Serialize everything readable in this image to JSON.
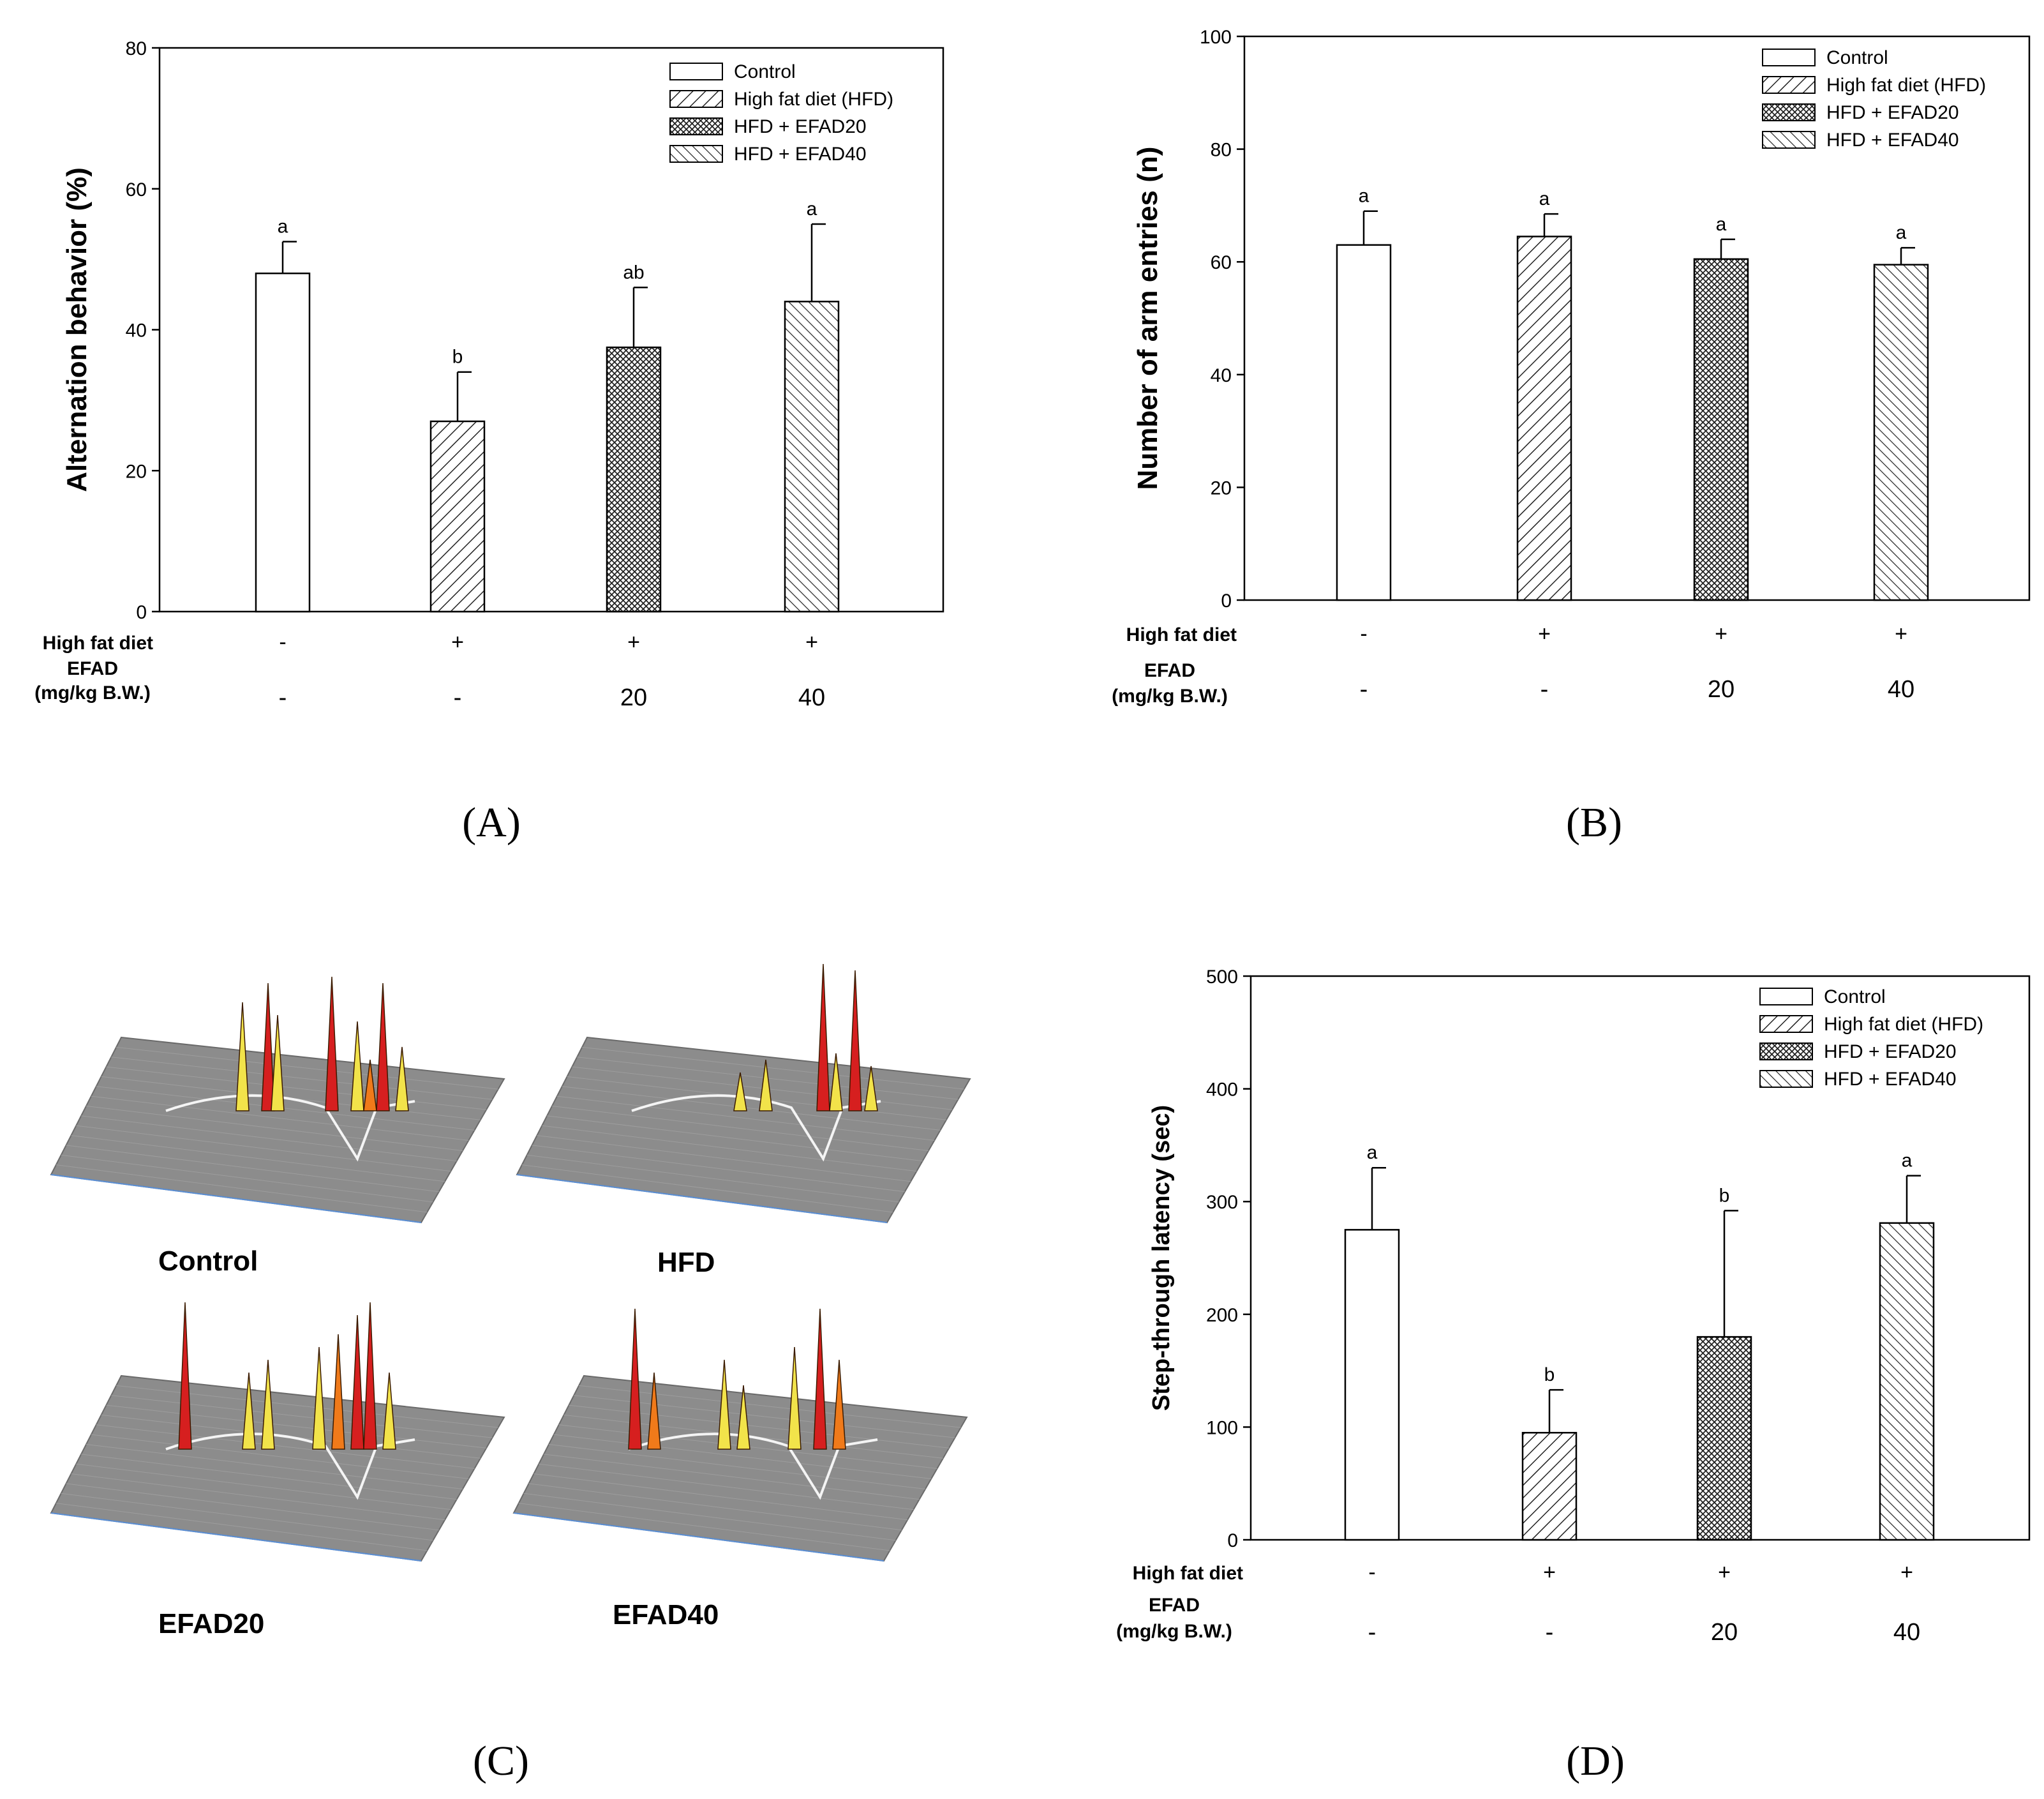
{
  "chart_data": [
    {
      "panel": "A",
      "panel_label": "(A)",
      "type": "bar",
      "ylabel": "Alternation behavior (%)",
      "ylim": [
        0,
        80
      ],
      "yticks": [
        "0",
        "20",
        "40",
        "60",
        "80"
      ],
      "values": [
        48,
        27,
        37.5,
        44
      ],
      "errors": [
        4.5,
        7,
        8.5,
        11
      ],
      "significance": [
        "a",
        "b",
        "ab",
        "a"
      ],
      "row1_label": "High fat diet",
      "row1_values": [
        "-",
        "+",
        "+",
        "+"
      ],
      "row2_label": [
        "EFAD",
        "(mg/kg B.W.)"
      ],
      "row2_values": [
        "-",
        "-",
        "20",
        "40"
      ],
      "legend": [
        "Control",
        "High fat diet (HFD)",
        "HFD + EFAD20",
        "HFD + EFAD40"
      ]
    },
    {
      "panel": "B",
      "panel_label": "(B)",
      "type": "bar",
      "ylabel": "Number of arm entries (n)",
      "ylim": [
        0,
        100
      ],
      "yticks": [
        "0",
        "20",
        "40",
        "60",
        "80",
        "100"
      ],
      "values": [
        63,
        64.5,
        60.5,
        59.5
      ],
      "errors": [
        6,
        4,
        3.5,
        3
      ],
      "significance": [
        "a",
        "a",
        "a",
        "a"
      ],
      "row1_label": "High fat diet",
      "row1_values": [
        "-",
        "+",
        "+",
        "+"
      ],
      "row2_label": [
        "EFAD",
        "(mg/kg B.W.)"
      ],
      "row2_values": [
        "-",
        "-",
        "20",
        "40"
      ],
      "legend": [
        "Control",
        "High fat diet (HFD)",
        "HFD + EFAD20",
        "HFD + EFAD40"
      ]
    },
    {
      "panel": "D",
      "panel_label": "(D)",
      "type": "bar",
      "ylabel": "Step-through latency (sec)",
      "ylim": [
        0,
        500
      ],
      "yticks": [
        "0",
        "100",
        "200",
        "300",
        "400",
        "500"
      ],
      "values": [
        275,
        95,
        180,
        281
      ],
      "errors": [
        55,
        38,
        112,
        42
      ],
      "significance": [
        "a",
        "b",
        "b",
        "a"
      ],
      "row1_label": "High fat diet",
      "row1_values": [
        "-",
        "+",
        "+",
        "+"
      ],
      "row2_label": [
        "EFAD",
        "(mg/kg B.W.)"
      ],
      "row2_values": [
        "-",
        "-",
        "20",
        "40"
      ],
      "legend": [
        "Control",
        "High fat diet (HFD)",
        "HFD + EFAD20",
        "HFD + EFAD40"
      ]
    }
  ],
  "panel_c": {
    "panel_label": "(C)",
    "captions": [
      "Control",
      "HFD",
      "EFAD20",
      "EFAD40"
    ]
  },
  "colors": {
    "axis": "#000000",
    "bar_fill": "#ffffff",
    "surface": "#8c8c8c",
    "peak_red": "#d61f1f",
    "peak_orange": "#f07a1a",
    "peak_yellow": "#f2e34a",
    "tick_blue": "#5a8fd6"
  }
}
